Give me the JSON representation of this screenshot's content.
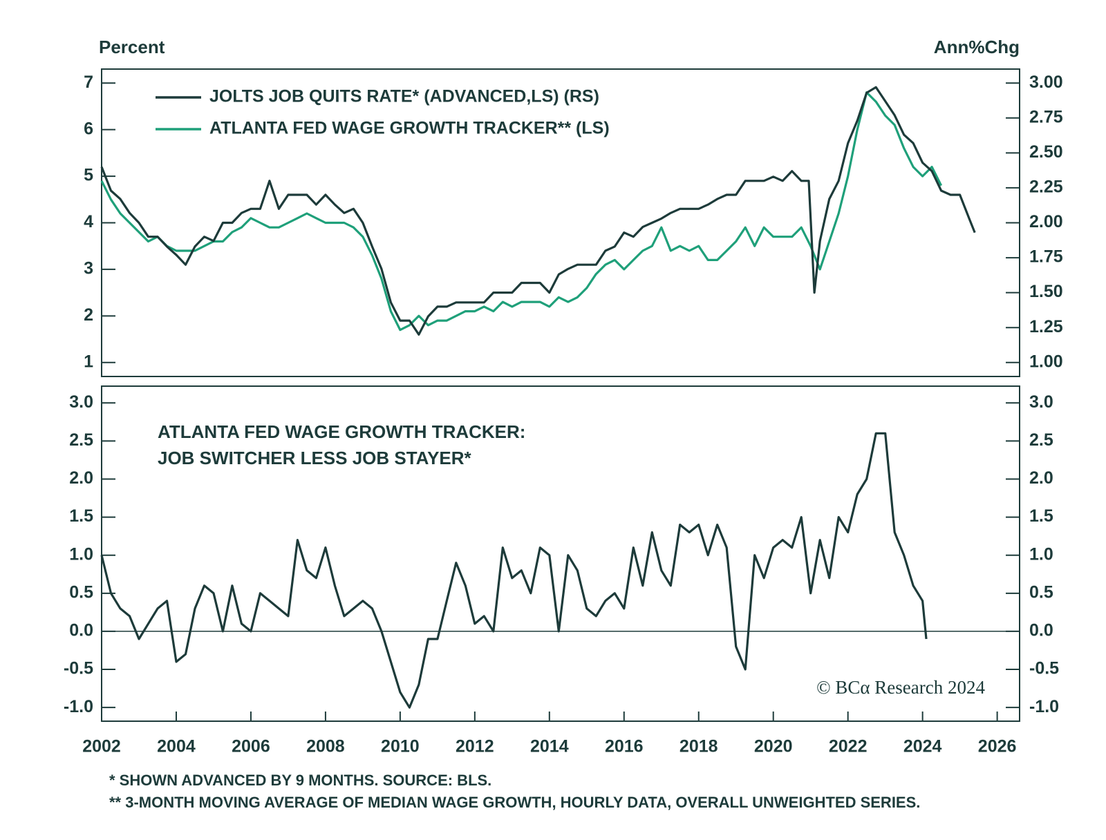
{
  "chart_data": [
    {
      "type": "line",
      "y_label": "Percent",
      "y2_label": "Ann%Chg",
      "legend": "upper left",
      "xlim": [
        2002,
        2026.6
      ],
      "ylim": [
        0.7,
        7.3
      ],
      "yticks": [
        1,
        2,
        3,
        4,
        5,
        6,
        7
      ],
      "y2lim": [
        0.9,
        3.1
      ],
      "y2ticks": [
        {
          "value": 1,
          "label": "1.00"
        },
        1.25,
        {
          "value": 1.5,
          "label": "1.50"
        },
        1.75,
        {
          "value": 2,
          "label": "2.00"
        },
        2.25,
        {
          "value": 2.5,
          "label": "2.50"
        },
        2.75,
        {
          "value": 3,
          "label": "3.00"
        }
      ],
      "series": [
        {
          "name": "JOLTS JOB QUITS RATE* (ADVANCED,LS) (RS)",
          "color": "#1d3b3a",
          "axis": "y2",
          "x": [
            2002,
            2002.25,
            2002.5,
            2002.75,
            2003,
            2003.25,
            2003.5,
            2003.75,
            2004,
            2004.25,
            2004.5,
            2004.75,
            2005,
            2005.25,
            2005.5,
            2005.75,
            2006,
            2006.25,
            2006.5,
            2006.75,
            2007,
            2007.25,
            2007.5,
            2007.75,
            2008,
            2008.25,
            2008.5,
            2008.75,
            2009,
            2009.25,
            2009.5,
            2009.75,
            2010,
            2010.25,
            2010.5,
            2010.75,
            2011,
            2011.25,
            2011.5,
            2011.75,
            2012,
            2012.25,
            2012.5,
            2012.75,
            2013,
            2013.25,
            2013.5,
            2013.75,
            2014,
            2014.25,
            2014.5,
            2014.75,
            2015,
            2015.25,
            2015.5,
            2015.75,
            2016,
            2016.25,
            2016.5,
            2016.75,
            2017,
            2017.25,
            2017.5,
            2017.75,
            2018,
            2018.25,
            2018.5,
            2018.75,
            2019,
            2019.25,
            2019.5,
            2019.75,
            2020,
            2020.25,
            2020.5,
            2020.75,
            2020.95,
            2021.1,
            2021.25,
            2021.5,
            2021.75,
            2022,
            2022.25,
            2022.5,
            2022.75,
            2023,
            2023.25,
            2023.5,
            2023.75,
            2024,
            2024.25,
            2024.5,
            2024.75,
            2025,
            2025.25,
            2025.4
          ],
          "values": [
            2.4,
            2.23,
            2.17,
            2.07,
            2.0,
            1.9,
            1.9,
            1.83,
            1.77,
            1.7,
            1.83,
            1.9,
            1.87,
            2.0,
            2.0,
            2.07,
            2.1,
            2.1,
            2.3,
            2.1,
            2.2,
            2.2,
            2.2,
            2.13,
            2.2,
            2.13,
            2.07,
            2.1,
            2.0,
            1.83,
            1.67,
            1.43,
            1.3,
            1.3,
            1.2,
            1.33,
            1.4,
            1.4,
            1.43,
            1.43,
            1.43,
            1.43,
            1.5,
            1.5,
            1.5,
            1.57,
            1.57,
            1.57,
            1.5,
            1.63,
            1.67,
            1.7,
            1.7,
            1.7,
            1.8,
            1.83,
            1.93,
            1.9,
            1.97,
            2.0,
            2.03,
            2.07,
            2.1,
            2.1,
            2.1,
            2.13,
            2.17,
            2.2,
            2.2,
            2.3,
            2.3,
            2.3,
            2.33,
            2.3,
            2.37,
            2.3,
            2.3,
            1.5,
            1.87,
            2.17,
            2.3,
            2.57,
            2.73,
            2.93,
            2.97,
            2.87,
            2.77,
            2.63,
            2.57,
            2.43,
            2.37,
            2.23,
            2.2,
            2.2,
            2.03,
            1.93
          ]
        },
        {
          "name": "ATLANTA FED WAGE GROWTH TRACKER** (LS)",
          "color": "#1fa07a",
          "x": [
            2002,
            2002.25,
            2002.5,
            2002.75,
            2003,
            2003.25,
            2003.5,
            2003.75,
            2004,
            2004.25,
            2004.5,
            2004.75,
            2005,
            2005.25,
            2005.5,
            2005.75,
            2006,
            2006.25,
            2006.5,
            2006.75,
            2007,
            2007.25,
            2007.5,
            2007.75,
            2008,
            2008.25,
            2008.5,
            2008.75,
            2009,
            2009.25,
            2009.5,
            2009.75,
            2010,
            2010.25,
            2010.5,
            2010.75,
            2011,
            2011.25,
            2011.5,
            2011.75,
            2012,
            2012.25,
            2012.5,
            2012.75,
            2013,
            2013.25,
            2013.5,
            2013.75,
            2014,
            2014.25,
            2014.5,
            2014.75,
            2015,
            2015.25,
            2015.5,
            2015.75,
            2016,
            2016.25,
            2016.5,
            2016.75,
            2017,
            2017.25,
            2017.5,
            2017.75,
            2018,
            2018.25,
            2018.5,
            2018.75,
            2019,
            2019.25,
            2019.5,
            2019.75,
            2020,
            2020.25,
            2020.5,
            2020.75,
            2021,
            2021.25,
            2021.5,
            2021.75,
            2022,
            2022.25,
            2022.5,
            2022.75,
            2023,
            2023.25,
            2023.5,
            2023.75,
            2024,
            2024.25,
            2024.5
          ],
          "values": [
            4.9,
            4.5,
            4.2,
            4.0,
            3.8,
            3.6,
            3.7,
            3.5,
            3.4,
            3.4,
            3.4,
            3.5,
            3.6,
            3.6,
            3.8,
            3.9,
            4.1,
            4.0,
            3.9,
            3.9,
            4.0,
            4.1,
            4.2,
            4.1,
            4.0,
            4.0,
            4.0,
            3.9,
            3.7,
            3.3,
            2.8,
            2.1,
            1.7,
            1.8,
            2.0,
            1.8,
            1.9,
            1.9,
            2.0,
            2.1,
            2.1,
            2.2,
            2.1,
            2.3,
            2.2,
            2.3,
            2.3,
            2.3,
            2.2,
            2.4,
            2.3,
            2.4,
            2.6,
            2.9,
            3.1,
            3.2,
            3.0,
            3.2,
            3.4,
            3.5,
            3.9,
            3.4,
            3.5,
            3.4,
            3.5,
            3.2,
            3.2,
            3.4,
            3.6,
            3.9,
            3.5,
            3.9,
            3.7,
            3.7,
            3.7,
            3.9,
            3.5,
            3.0,
            3.6,
            4.2,
            5.0,
            6.0,
            6.8,
            6.6,
            6.3,
            6.1,
            5.6,
            5.2,
            5.0,
            5.2,
            4.8
          ]
        }
      ]
    },
    {
      "type": "line",
      "annotation": [
        "ATLANTA FED WAGE GROWTH TRACKER:",
        "JOB SWITCHER LESS JOB STAYER*"
      ],
      "zero_line": true,
      "xlim": [
        2002,
        2026.6
      ],
      "xticks": [
        2002,
        2004,
        2006,
        2008,
        2010,
        2012,
        2014,
        2016,
        2018,
        2020,
        2022,
        2024,
        2026
      ],
      "ylim": [
        -1.18,
        3.22
      ],
      "yticks": [
        {
          "value": -1,
          "label": "-1.0"
        },
        -0.5,
        {
          "value": 0,
          "label": "0.0"
        },
        0.5,
        {
          "value": 1,
          "label": "1.0"
        },
        1.5,
        {
          "value": 2,
          "label": "2.0"
        },
        2.5,
        {
          "value": 3,
          "label": "3.0"
        }
      ],
      "series": [
        {
          "color": "#1d3b3a",
          "x": [
            2002,
            2002.25,
            2002.5,
            2002.75,
            2003,
            2003.25,
            2003.5,
            2003.75,
            2004,
            2004.25,
            2004.5,
            2004.75,
            2005,
            2005.25,
            2005.5,
            2005.75,
            2006,
            2006.25,
            2006.5,
            2006.75,
            2007,
            2007.25,
            2007.5,
            2007.75,
            2008,
            2008.25,
            2008.5,
            2008.75,
            2009,
            2009.25,
            2009.5,
            2009.75,
            2010,
            2010.25,
            2010.5,
            2010.75,
            2011,
            2011.25,
            2011.5,
            2011.75,
            2012,
            2012.25,
            2012.5,
            2012.75,
            2013,
            2013.25,
            2013.5,
            2013.75,
            2014,
            2014.25,
            2014.5,
            2014.75,
            2015,
            2015.25,
            2015.5,
            2015.75,
            2016,
            2016.25,
            2016.5,
            2016.75,
            2017,
            2017.25,
            2017.5,
            2017.75,
            2018,
            2018.25,
            2018.5,
            2018.75,
            2019,
            2019.25,
            2019.5,
            2019.75,
            2020,
            2020.25,
            2020.5,
            2020.75,
            2021,
            2021.25,
            2021.5,
            2021.75,
            2022,
            2022.25,
            2022.5,
            2022.75,
            2023,
            2023.25,
            2023.5,
            2023.75,
            2024,
            2024.1
          ],
          "values": [
            1.0,
            0.5,
            0.3,
            0.2,
            -0.1,
            0.1,
            0.3,
            0.4,
            -0.4,
            -0.3,
            0.3,
            0.6,
            0.5,
            0.0,
            0.6,
            0.1,
            0.0,
            0.5,
            0.4,
            0.3,
            0.2,
            1.2,
            0.8,
            0.7,
            1.1,
            0.6,
            0.2,
            0.3,
            0.4,
            0.3,
            0.0,
            -0.4,
            -0.8,
            -1.0,
            -0.7,
            -0.1,
            -0.1,
            0.4,
            0.9,
            0.6,
            0.1,
            0.2,
            0.0,
            1.1,
            0.7,
            0.8,
            0.5,
            1.1,
            1.0,
            0.0,
            1.0,
            0.8,
            0.3,
            0.2,
            0.4,
            0.5,
            0.3,
            1.1,
            0.6,
            1.3,
            0.8,
            0.6,
            1.4,
            1.3,
            1.4,
            1.0,
            1.4,
            1.1,
            -0.2,
            -0.5,
            1.0,
            0.7,
            1.1,
            1.2,
            1.1,
            1.5,
            0.5,
            1.2,
            0.7,
            1.5,
            1.3,
            1.8,
            2.0,
            2.6,
            2.6,
            1.3,
            1.0,
            0.6,
            0.4,
            -0.1
          ]
        }
      ]
    }
  ],
  "credit": "© BCα Research 2024",
  "footnotes": [
    "* SHOWN ADVANCED BY 9 MONTHS. SOURCE: BLS.",
    "** 3-MONTH MOVING AVERAGE OF MEDIAN WAGE GROWTH, HOURLY DATA, OVERALL UNWEIGHTED SERIES."
  ]
}
